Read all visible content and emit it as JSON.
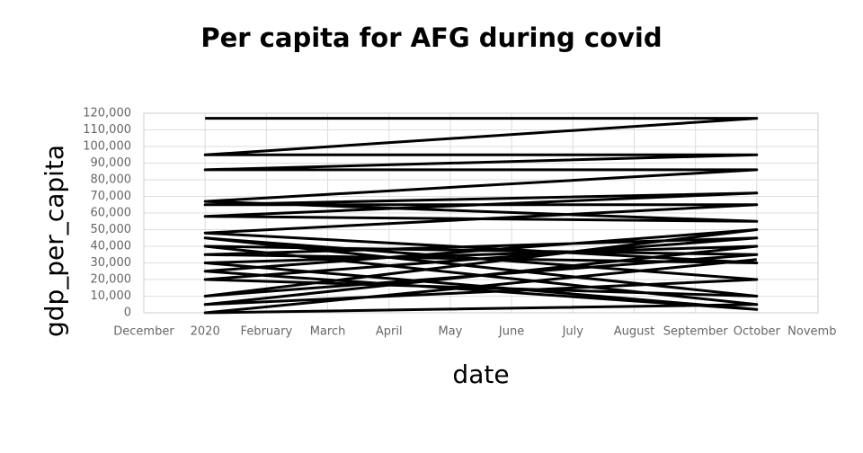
{
  "chart_data": {
    "type": "line",
    "title": "Per capita for AFG during covid",
    "x_label": "date",
    "y_label": "gdp_per_capita",
    "xlim": [
      "2019-12",
      "2020-11"
    ],
    "xticks": [
      {
        "value": "2019-12",
        "label": "December"
      },
      {
        "value": "2020-01",
        "label": "2020"
      },
      {
        "value": "2020-02",
        "label": "February"
      },
      {
        "value": "2020-03",
        "label": "March"
      },
      {
        "value": "2020-04",
        "label": "April"
      },
      {
        "value": "2020-05",
        "label": "May"
      },
      {
        "value": "2020-06",
        "label": "June"
      },
      {
        "value": "2020-07",
        "label": "July"
      },
      {
        "value": "2020-08",
        "label": "August"
      },
      {
        "value": "2020-09",
        "label": "September"
      },
      {
        "value": "2020-10",
        "label": "October"
      },
      {
        "value": "2020-11",
        "label": "November"
      }
    ],
    "ylim": [
      0,
      120000
    ],
    "yticks": [
      0,
      {
        "value": 10000,
        "label": "10,000"
      },
      {
        "value": 20000,
        "label": "20,000"
      },
      {
        "value": 30000,
        "label": "30,000"
      },
      {
        "value": 40000,
        "label": "40,000"
      },
      {
        "value": 50000,
        "label": "50,000"
      },
      {
        "value": 60000,
        "label": "60,000"
      },
      {
        "value": 70000,
        "label": "70,000"
      },
      {
        "value": 80000,
        "label": "80,000"
      },
      {
        "value": 90000,
        "label": "90,000"
      },
      {
        "value": 100000,
        "label": "100,000"
      },
      {
        "value": 110000,
        "label": "110,000"
      },
      {
        "value": 120000,
        "label": "120,000"
      }
    ],
    "grid": true,
    "series": [
      {
        "color": "#000000",
        "x": [
          "2020-01",
          "2020-10",
          "2020-01",
          "2020-10",
          "2020-01",
          "2020-10",
          "2020-01",
          "2020-10",
          "2020-01",
          "2020-10",
          "2020-01",
          "2020-10",
          "2020-01",
          "2020-10",
          "2020-01",
          "2020-10",
          "2020-01",
          "2020-10",
          "2020-01",
          "2020-10",
          "2020-01",
          "2020-10",
          "2020-01",
          "2020-10",
          "2020-01",
          "2020-10",
          "2020-01",
          "2020-10",
          "2020-01",
          "2020-10",
          "2020-01",
          "2020-10"
        ],
        "values": [
          117000,
          117000,
          95000,
          95000,
          86000,
          86000,
          67000,
          55000,
          58000,
          72000,
          65000,
          65000,
          48000,
          30000,
          35000,
          45000,
          20000,
          10000,
          45000,
          20000,
          5000,
          40000,
          30000,
          2000,
          25000,
          50000,
          10000,
          35000,
          40000,
          5000,
          0,
          32000
        ]
      }
    ]
  }
}
